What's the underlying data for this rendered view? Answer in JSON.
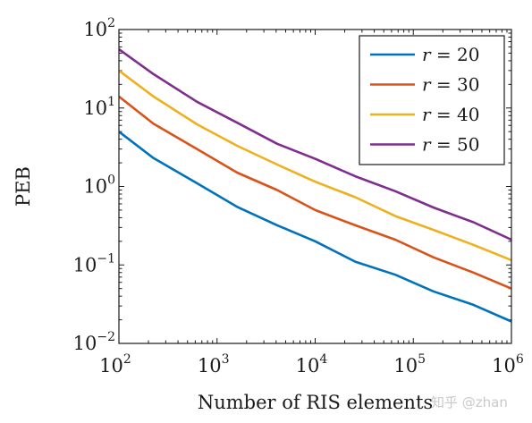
{
  "chart_data": {
    "type": "line",
    "xscale": "log",
    "yscale": "log",
    "xlabel": "Number of RIS elements",
    "ylabel": "PEB",
    "xlim": [
      100,
      1000000
    ],
    "ylim": [
      0.01,
      100
    ],
    "x_ticks": [
      {
        "base": "10",
        "exp": "2"
      },
      {
        "base": "10",
        "exp": "3"
      },
      {
        "base": "10",
        "exp": "4"
      },
      {
        "base": "10",
        "exp": "5"
      },
      {
        "base": "10",
        "exp": "6"
      }
    ],
    "y_ticks": [
      {
        "base": "10",
        "exp": "−2"
      },
      {
        "base": "10",
        "exp": "−1"
      },
      {
        "base": "10",
        "exp": "0"
      },
      {
        "base": "10",
        "exp": "1"
      },
      {
        "base": "10",
        "exp": "2"
      }
    ],
    "x": [
      100,
      225,
      625,
      1600,
      4096,
      10000,
      25600,
      65536,
      160000,
      409600,
      1000000
    ],
    "series": [
      {
        "name": "r = 20",
        "var": "r",
        "rel": "= 20",
        "color": "#0072bd",
        "values": [
          5.0,
          2.3,
          1.1,
          0.55,
          0.32,
          0.2,
          0.11,
          0.075,
          0.046,
          0.031,
          0.019
        ]
      },
      {
        "name": "r = 30",
        "var": "r",
        "rel": "= 30",
        "color": "#d95319",
        "values": [
          14,
          6.3,
          3.0,
          1.5,
          0.9,
          0.5,
          0.32,
          0.21,
          0.125,
          0.08,
          0.05
        ]
      },
      {
        "name": "r = 40",
        "var": "r",
        "rel": "= 40",
        "color": "#edb120",
        "values": [
          30,
          14,
          6.2,
          3.3,
          1.9,
          1.15,
          0.73,
          0.42,
          0.28,
          0.18,
          0.115
        ]
      },
      {
        "name": "r = 50",
        "var": "r",
        "rel": "= 50",
        "color": "#7e2f8e",
        "values": [
          56,
          27,
          12,
          6.5,
          3.5,
          2.25,
          1.35,
          0.87,
          0.54,
          0.35,
          0.21
        ]
      }
    ],
    "grid": false,
    "legend_position": "top-right"
  },
  "watermark": "知乎 @zhan"
}
